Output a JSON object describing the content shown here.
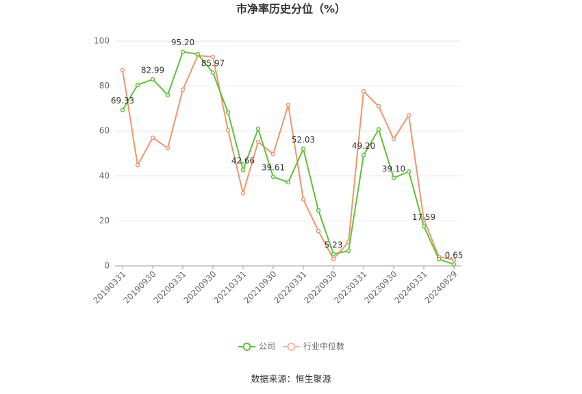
{
  "chart_data": {
    "type": "line",
    "title": "市净率历史分位（%）",
    "categories": [
      "20190331",
      null,
      "20190930",
      null,
      "20200331",
      null,
      "20200930",
      null,
      "20210331",
      null,
      "20210930",
      null,
      "20220331",
      null,
      "20220930",
      null,
      "20230331",
      null,
      "20230930",
      null,
      "20240331",
      null,
      "20240829"
    ],
    "series": [
      {
        "name": "公司",
        "color": "#5cc234",
        "values": [
          69.33,
          80.5,
          82.99,
          76,
          95.2,
          94.2,
          85.97,
          68.3,
          42.66,
          61,
          39.61,
          37.2,
          52.03,
          24.7,
          5.23,
          6.7,
          49.2,
          60.7,
          39.1,
          42,
          17.59,
          3,
          0.65
        ],
        "value_labels": [
          "69.33",
          null,
          "82.99",
          null,
          "95.20",
          null,
          "85.97",
          null,
          "42.66",
          null,
          "39.61",
          null,
          "52.03",
          null,
          "5.23",
          null,
          "49.20",
          null,
          "39.10",
          null,
          "17.59",
          null,
          "0.65"
        ]
      },
      {
        "name": "行业中位数",
        "color": "#f09469",
        "values": [
          87.2,
          44.8,
          57,
          52.4,
          78.4,
          93.6,
          93,
          60.4,
          32.3,
          55.2,
          49.7,
          71.6,
          29.6,
          15.5,
          3,
          10.7,
          77.7,
          71,
          56.4,
          67,
          20.7,
          4,
          2.7
        ]
      }
    ],
    "ylim": [
      0,
      100
    ],
    "yticks": [
      0,
      20,
      40,
      60,
      80,
      100
    ],
    "grid": true,
    "legend": "bottom",
    "source": "数据来源：恒生聚源"
  }
}
